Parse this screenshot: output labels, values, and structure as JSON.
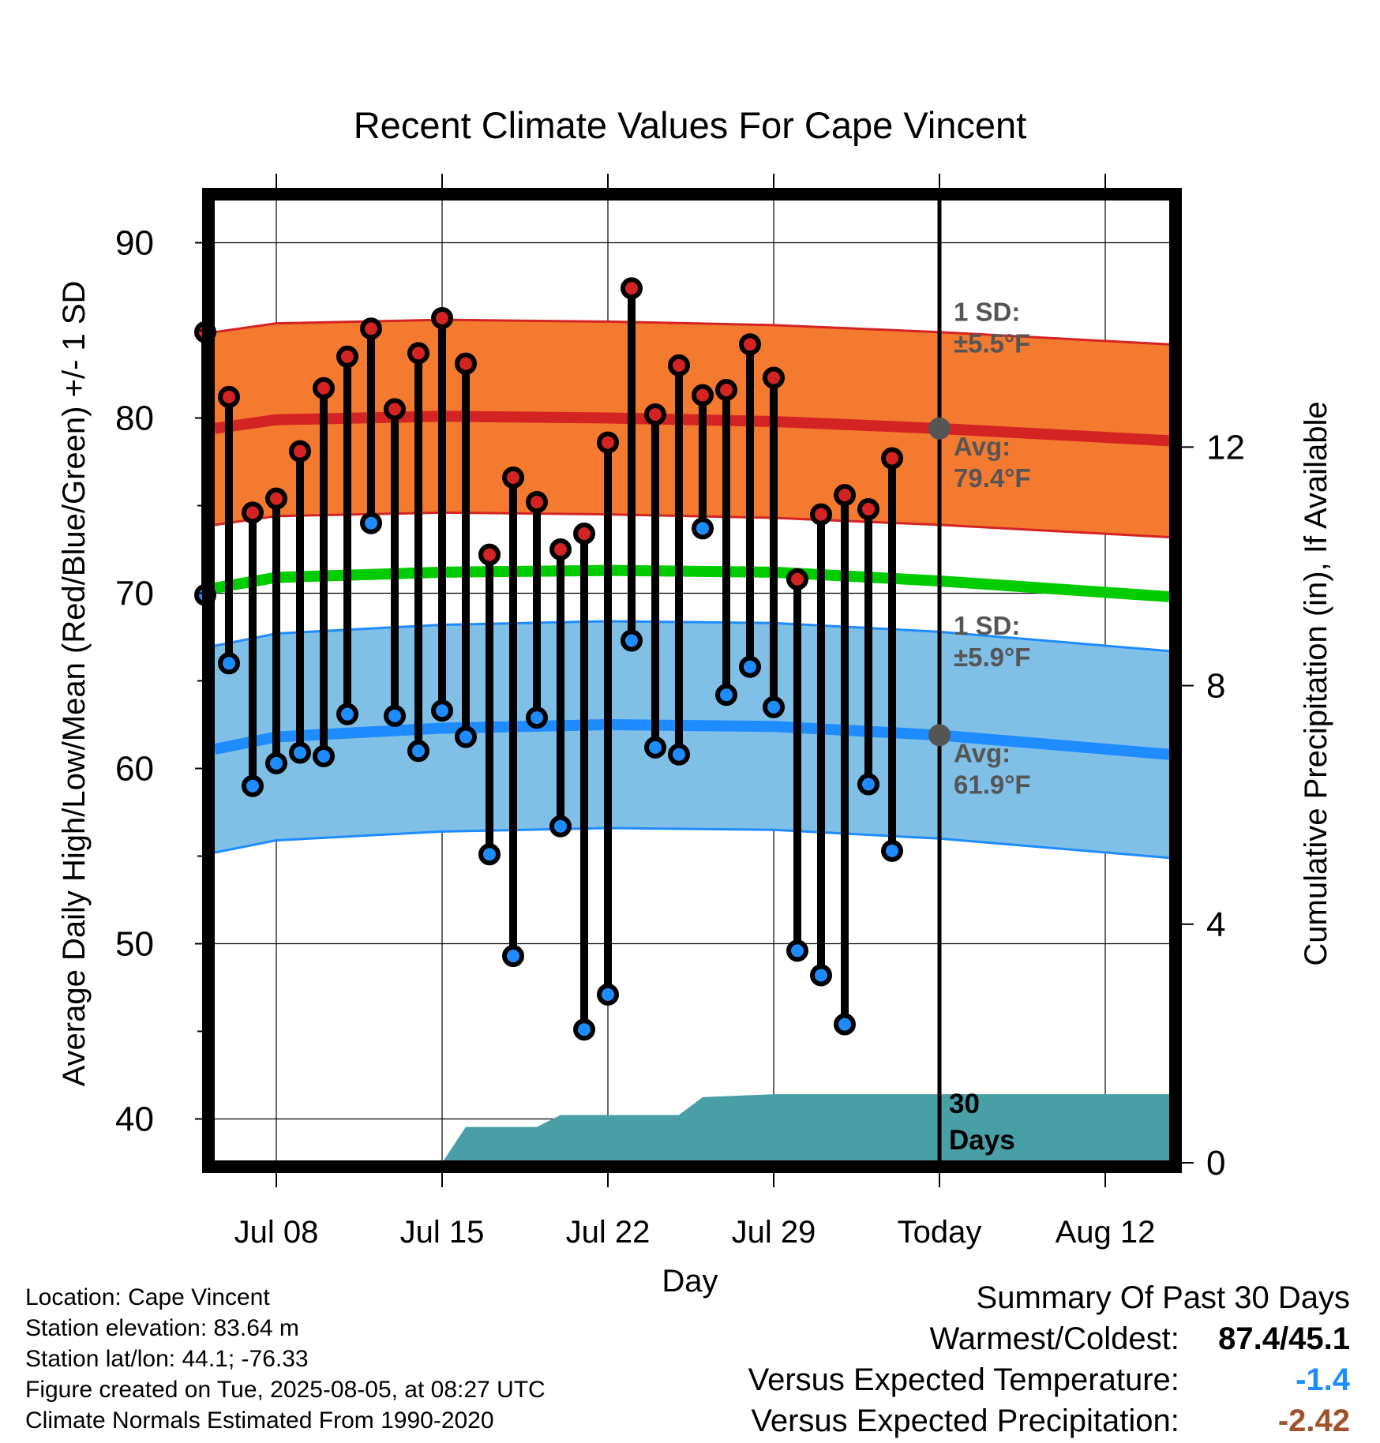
{
  "chart_data": {
    "type": "line",
    "title": "Recent Climate Values For Cape Vincent",
    "xlabel": "Day",
    "ylabel": "Average Daily High/Low/Mean (Red/Blue/Green) +/- 1 SD",
    "y2label": "Cumulative Precipitation (in), If Available",
    "x_ticks": [
      "Jul 08",
      "Jul 15",
      "Jul 22",
      "Jul 29",
      "Today",
      "Aug 12"
    ],
    "ylim": [
      37.5,
      92.5
    ],
    "yticks": [
      40,
      50,
      60,
      70,
      80,
      90
    ],
    "y2lim": [
      0,
      16.2
    ],
    "y2ticks": [
      0,
      4,
      8,
      12
    ],
    "today_label": "30 Days",
    "days": [
      "2025-07-05",
      "2025-07-06",
      "2025-07-07",
      "2025-07-08",
      "2025-07-09",
      "2025-07-10",
      "2025-07-11",
      "2025-07-12",
      "2025-07-13",
      "2025-07-14",
      "2025-07-15",
      "2025-07-16",
      "2025-07-17",
      "2025-07-18",
      "2025-07-19",
      "2025-07-20",
      "2025-07-21",
      "2025-07-22",
      "2025-07-23",
      "2025-07-24",
      "2025-07-25",
      "2025-07-26",
      "2025-07-27",
      "2025-07-28",
      "2025-07-29",
      "2025-07-30",
      "2025-07-31",
      "2025-08-01",
      "2025-08-02",
      "2025-08-03",
      "2025-08-04"
    ],
    "observed_high": [
      84.9,
      81.2,
      74.6,
      75.4,
      78.1,
      81.7,
      83.5,
      85.1,
      80.5,
      83.7,
      85.7,
      83.1,
      72.2,
      76.6,
      75.2,
      72.5,
      73.4,
      78.6,
      87.4,
      80.2,
      83.0,
      81.3,
      81.6,
      84.2,
      82.3,
      70.8,
      74.5,
      75.6,
      74.8,
      77.7,
      null
    ],
    "observed_low": [
      69.9,
      66.0,
      59.0,
      60.3,
      60.9,
      60.7,
      63.1,
      74.0,
      63.0,
      61.0,
      63.3,
      61.8,
      55.1,
      49.3,
      62.9,
      56.7,
      45.1,
      47.1,
      67.3,
      61.2,
      60.8,
      73.7,
      64.2,
      65.8,
      63.5,
      49.6,
      48.2,
      45.4,
      59.1,
      55.3,
      null
    ],
    "normals_days": [
      "2025-07-04",
      "2025-07-08",
      "2025-07-15",
      "2025-07-22",
      "2025-07-29",
      "2025-08-05",
      "2025-08-15"
    ],
    "series": [
      {
        "name": "Average Daily High",
        "color": "#d42323",
        "values": [
          79.4,
          79.9,
          80.1,
          80.0,
          79.8,
          79.4,
          78.7
        ],
        "sd": 5.5
      },
      {
        "name": "Average Daily Low",
        "color": "#1e8cff",
        "values": [
          61.1,
          61.8,
          62.3,
          62.5,
          62.4,
          61.9,
          60.8
        ],
        "sd": 5.9
      },
      {
        "name": "Average Daily Mean",
        "color": "#00cc00",
        "values": [
          70.3,
          70.9,
          71.2,
          71.3,
          71.2,
          70.7,
          69.8
        ]
      }
    ],
    "precip_days": [
      "2025-07-04",
      "2025-07-15",
      "2025-07-16",
      "2025-07-19",
      "2025-07-20",
      "2025-07-25",
      "2025-07-26",
      "2025-07-29",
      "2025-08-15"
    ],
    "cumulative_precip": [
      0,
      0,
      0.6,
      0.6,
      0.8,
      0.8,
      1.1,
      1.15,
      1.15
    ],
    "annotations": {
      "high_sd": "1 SD: ±5.5°F",
      "high_avg": "Avg: 79.4°F",
      "low_sd": "1 SD: ±5.9°F",
      "low_avg": "Avg: 61.9°F"
    },
    "colors": {
      "high_band": "#f47a30",
      "high_line": "#d42323",
      "low_band": "#80bfe6",
      "low_line": "#1e8cff",
      "mean_line": "#00cc00",
      "precip_fill": "#48a0a6",
      "marker_edge": "#000000",
      "today_marker": "#555555"
    }
  },
  "info": {
    "location": "Location: Cape Vincent",
    "elevation": "Station elevation: 83.64 m",
    "latlon": "Station lat/lon: 44.1; -76.33",
    "created": "Figure created on Tue, 2025-08-05, at 08:27 UTC",
    "normals": "Climate Normals Estimated From 1990-2020"
  },
  "summary": {
    "title": "Summary Of Past 30 Days",
    "warmest_coldest_label": "Warmest/Coldest:",
    "warmest_coldest_value": "87.4/45.1",
    "temp_label": "Versus Expected Temperature:",
    "temp_value": "-1.4",
    "temp_color": "#1e8cff",
    "precip_label": "Versus Expected Precipitation:",
    "precip_value": "-2.42",
    "precip_color": "#a0522d"
  }
}
